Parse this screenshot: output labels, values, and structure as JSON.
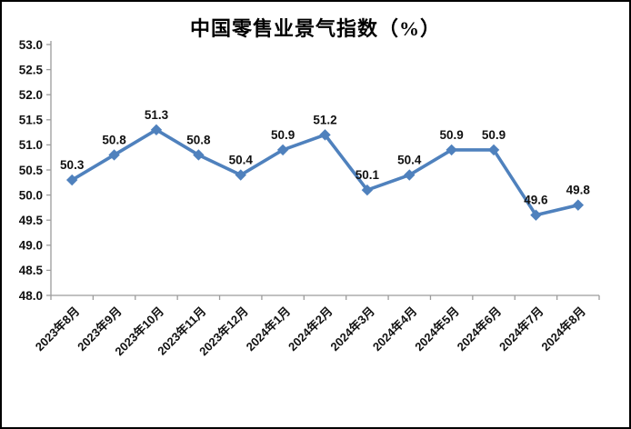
{
  "chart_data": {
    "type": "line",
    "title": "中国零售业景气指数（%）",
    "categories": [
      "2023年8月",
      "2023年9月",
      "2023年10月",
      "2023年11月",
      "2023年12月",
      "2024年1月",
      "2024年2月",
      "2024年3月",
      "2024年4月",
      "2024年5月",
      "2024年6月",
      "2024年7月",
      "2024年8月"
    ],
    "values": [
      50.3,
      50.8,
      51.3,
      50.8,
      50.4,
      50.9,
      51.2,
      50.1,
      50.4,
      50.9,
      50.9,
      49.6,
      49.8
    ],
    "data_labels": [
      "50.3",
      "50.8",
      "51.3",
      "50.8",
      "50.4",
      "50.9",
      "51.2",
      "50.1",
      "50.4",
      "50.9",
      "50.9",
      "49.6",
      "49.8"
    ],
    "ylim": [
      48.0,
      53.0
    ],
    "y_step": 0.5,
    "y_ticks": [
      "53.0",
      "52.5",
      "52.0",
      "51.5",
      "51.0",
      "50.5",
      "50.0",
      "49.5",
      "49.0",
      "48.5",
      "48.0"
    ],
    "xlabel": "",
    "ylabel": "",
    "grid": false,
    "legend": "none",
    "marker": "diamond",
    "line_color": "#4F81BD",
    "axis_color": "#9C9C9C",
    "text_color": "#111111",
    "background": "#FFFFFF"
  }
}
